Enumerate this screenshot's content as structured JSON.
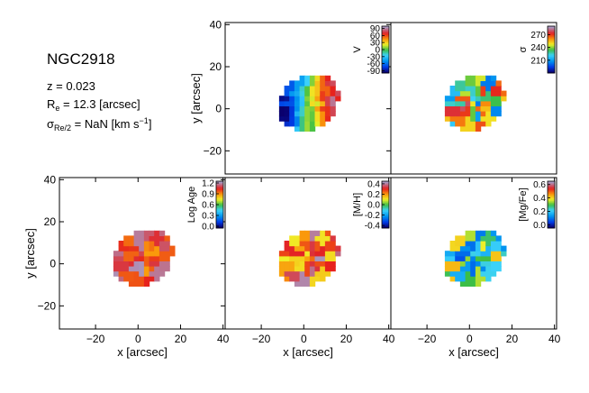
{
  "galaxy": {
    "name": "NGC2918",
    "z_label": "z = 0.023",
    "re_prefix": "R",
    "re_sub": "e",
    "re_suffix": " = 12.3 [arcsec]",
    "sigma_prefix": "σ",
    "sigma_sub": "Re/2",
    "sigma_suffix": " = NaN [km s",
    "sigma_sup": "−1",
    "sigma_close": "]"
  },
  "chart_data": [
    {
      "type": "heatmap",
      "name": "V",
      "colorbar_label": "V",
      "colorbar_ticks": [
        "90",
        "60",
        "30",
        "0",
        "-30",
        "-60",
        "-90"
      ],
      "colorbar_tick_values": [
        90,
        60,
        30,
        0,
        -30,
        -60,
        -90
      ],
      "colorbar_range": [
        -100,
        100
      ],
      "ylabel": "y [arcsec]",
      "xlabel": "",
      "xlim": [
        -37,
        41
      ],
      "ylim": [
        -31,
        41
      ],
      "yticks": [
        "40",
        "20",
        "0",
        "−20"
      ],
      "ytick_values": [
        40,
        20,
        0,
        -20
      ],
      "xticks": [],
      "xtick_values": [],
      "colormap": "sauron",
      "map_center": [
        1,
        2
      ],
      "map_radius_arcsec": 15,
      "values_range": [
        -90,
        90
      ],
      "pattern": "rotation"
    },
    {
      "type": "heatmap",
      "name": "sigma",
      "colorbar_label": "σ",
      "colorbar_ticks": [
        "270",
        "240",
        "210"
      ],
      "colorbar_tick_values": [
        270,
        240,
        210
      ],
      "colorbar_range": [
        180,
        290
      ],
      "ylabel": "",
      "xlabel": "",
      "xlim": [
        -37,
        41
      ],
      "ylim": [
        -31,
        41
      ],
      "yticks": [],
      "ytick_values": [],
      "xticks": [],
      "xtick_values": [],
      "colormap": "sauron",
      "map_center": [
        1,
        2
      ],
      "map_radius_arcsec": 15,
      "values_range": [
        200,
        285
      ],
      "pattern": "noisy"
    },
    {
      "type": "heatmap",
      "name": "log-age",
      "colorbar_label": "Log Age",
      "colorbar_ticks": [
        "1.2",
        "0.9",
        "0.6",
        "0.3",
        "0.0"
      ],
      "colorbar_tick_values": [
        1.2,
        0.9,
        0.6,
        0.3,
        0.0
      ],
      "colorbar_range": [
        -0.05,
        1.25
      ],
      "ylabel": "y [arcsec]",
      "xlabel": "x [arcsec]",
      "xlim": [
        -37,
        41
      ],
      "ylim": [
        -31,
        41
      ],
      "yticks": [
        "40",
        "20",
        "0",
        "−20"
      ],
      "ytick_values": [
        40,
        20,
        0,
        -20
      ],
      "xticks": [
        "−20",
        "0",
        "20",
        "40"
      ],
      "xtick_values": [
        -20,
        0,
        20,
        40
      ],
      "colormap": "sauron",
      "map_center": [
        1,
        2
      ],
      "map_radius_arcsec": 15,
      "values_range": [
        0.9,
        1.25
      ],
      "pattern": "noisy"
    },
    {
      "type": "heatmap",
      "name": "metallicity",
      "colorbar_label": "[M/H]",
      "colorbar_ticks": [
        "0.4",
        "0.2",
        "0.0",
        "-0.2",
        "-0.4"
      ],
      "colorbar_tick_values": [
        0.4,
        0.2,
        0.0,
        -0.2,
        -0.4
      ],
      "colorbar_range": [
        -0.45,
        0.45
      ],
      "ylabel": "",
      "xlabel": "x [arcsec]",
      "xlim": [
        -37,
        41
      ],
      "ylim": [
        -31,
        41
      ],
      "yticks": [],
      "ytick_values": [],
      "xticks": [
        "−20",
        "0",
        "20",
        "40"
      ],
      "xtick_values": [
        -20,
        0,
        20,
        40
      ],
      "colormap": "sauron",
      "map_center": [
        1,
        2
      ],
      "map_radius_arcsec": 15,
      "values_range": [
        0.1,
        0.45
      ],
      "pattern": "noisy"
    },
    {
      "type": "heatmap",
      "name": "alpha-enhancement",
      "colorbar_label": "[Mg/Fe]",
      "colorbar_ticks": [
        "0.6",
        "0.4",
        "0.2",
        "0.0"
      ],
      "colorbar_tick_values": [
        0.6,
        0.4,
        0.2,
        0.0
      ],
      "colorbar_range": [
        -0.05,
        0.65
      ],
      "ylabel": "",
      "xlabel": "x [arcsec]",
      "xlim": [
        -37,
        41
      ],
      "ylim": [
        -31,
        41
      ],
      "yticks": [],
      "ytick_values": [],
      "xticks": [
        "−20",
        "0",
        "20",
        "40"
      ],
      "xtick_values": [
        -20,
        0,
        20,
        40
      ],
      "colormap": "sauron",
      "map_center": [
        1,
        2
      ],
      "map_radius_arcsec": 15,
      "values_range": [
        0.05,
        0.45
      ],
      "pattern": "noisy"
    }
  ]
}
